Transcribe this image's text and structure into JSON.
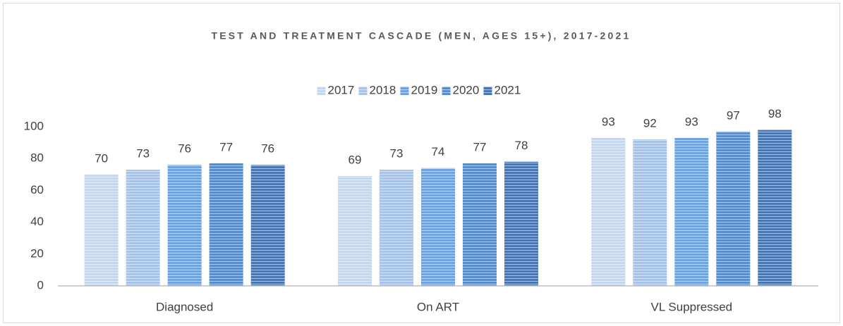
{
  "chart_data": {
    "type": "bar",
    "title": "TEST AND TREATMENT CASCADE (MEN, AGES 15+), 2017-2021",
    "categories": [
      "Diagnosed",
      "On ART",
      "VL Suppressed"
    ],
    "series": [
      {
        "name": "2017",
        "color": "#c6d6ec",
        "values": [
          70,
          69,
          93
        ]
      },
      {
        "name": "2018",
        "color": "#a8c3e6",
        "values": [
          73,
          73,
          92
        ]
      },
      {
        "name": "2019",
        "color": "#6fa2de",
        "values": [
          76,
          74,
          93
        ]
      },
      {
        "name": "2020",
        "color": "#5b8dcd",
        "values": [
          77,
          77,
          97
        ]
      },
      {
        "name": "2021",
        "color": "#4a76ad",
        "values": [
          76,
          78,
          98
        ]
      }
    ],
    "ylim": [
      0,
      100
    ],
    "yticks": [
      0,
      20,
      40,
      60,
      80,
      100
    ],
    "grid": false,
    "legend": "top"
  }
}
